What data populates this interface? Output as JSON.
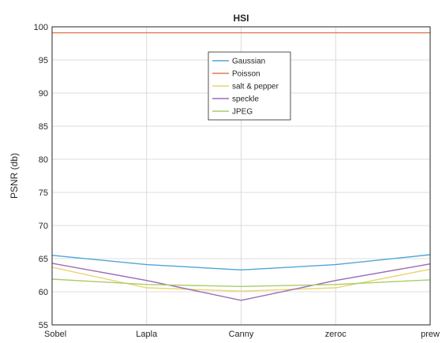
{
  "chart_data": {
    "type": "line",
    "title": "HSI",
    "xlabel": "",
    "ylabel": "PSNR (db)",
    "categories": [
      "Sobel",
      "Lapla",
      "Canny",
      "zeroc",
      "prew"
    ],
    "ylim": [
      55,
      100
    ],
    "yticks": [
      55,
      60,
      65,
      70,
      75,
      80,
      85,
      90,
      95,
      100
    ],
    "grid": true,
    "legend_position": "top-center",
    "series": [
      {
        "name": "Gaussian",
        "color": "#4da6d9",
        "values": [
          65.5,
          64.1,
          63.3,
          64.1,
          65.6
        ]
      },
      {
        "name": "Poisson",
        "color": "#e07b54",
        "values": [
          99.1,
          99.1,
          99.1,
          99.1,
          99.1
        ]
      },
      {
        "name": "salt & pepper",
        "color": "#e8d56f",
        "values": [
          63.7,
          60.6,
          60.1,
          60.6,
          63.4
        ]
      },
      {
        "name": "speckle",
        "color": "#9b6bb5",
        "values": [
          64.3,
          61.7,
          58.7,
          61.7,
          64.2
        ]
      },
      {
        "name": "JPEG",
        "color": "#a9cc6b",
        "values": [
          61.9,
          61.1,
          60.8,
          61.1,
          61.8
        ]
      }
    ]
  }
}
